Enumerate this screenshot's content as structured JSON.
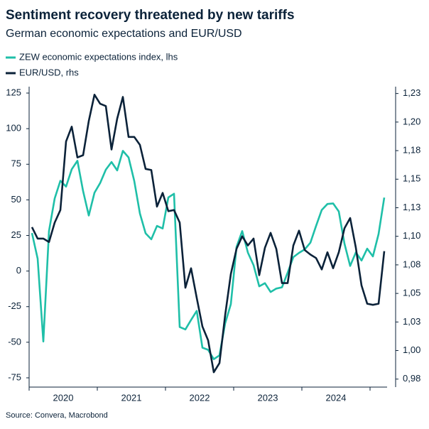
{
  "chart_data": {
    "type": "line",
    "title": "Sentiment recovery threatened by new tariffs",
    "subtitle": "German economic expectations and EUR/USD",
    "source": "Source: Convera, Macrobond",
    "x": [
      2020.042,
      2020.125,
      2020.208,
      2020.292,
      2020.375,
      2020.458,
      2020.542,
      2020.625,
      2020.708,
      2020.792,
      2020.875,
      2020.958,
      2021.042,
      2021.125,
      2021.208,
      2021.292,
      2021.375,
      2021.458,
      2021.542,
      2021.625,
      2021.708,
      2021.792,
      2021.875,
      2021.958,
      2022.042,
      2022.125,
      2022.208,
      2022.292,
      2022.375,
      2022.458,
      2022.542,
      2022.625,
      2022.708,
      2022.792,
      2022.875,
      2022.958,
      2023.042,
      2023.125,
      2023.208,
      2023.292,
      2023.375,
      2023.458,
      2023.542,
      2023.625,
      2023.708,
      2023.792,
      2023.875,
      2023.958,
      2024.042,
      2024.125,
      2024.208,
      2024.292,
      2024.375,
      2024.458,
      2024.542,
      2024.625,
      2024.708,
      2024.792,
      2024.875,
      2024.958,
      2025.042,
      2025.125,
      2025.208
    ],
    "xlim": [
      2020,
      2025.25
    ],
    "xticks": [
      2020,
      2021,
      2022,
      2023,
      2024
    ],
    "ylim": [
      -81.5,
      129.5
    ],
    "yticks": [
      -75,
      -50,
      -25,
      0,
      25,
      50,
      75,
      100,
      125
    ],
    "y2lim": [
      0.968,
      1.231
    ],
    "y2ticks": [
      {
        "value": 0.975,
        "label": "0,98"
      },
      {
        "value": 1.0,
        "label": "1,00"
      },
      {
        "value": 1.025,
        "label": "1,03"
      },
      {
        "value": 1.05,
        "label": "1,05"
      },
      {
        "value": 1.075,
        "label": "1,08"
      },
      {
        "value": 1.1,
        "label": "1,10"
      },
      {
        "value": 1.125,
        "label": "1,13"
      },
      {
        "value": 1.15,
        "label": "1,15"
      },
      {
        "value": 1.175,
        "label": "1,18"
      },
      {
        "value": 1.2,
        "label": "1,20"
      },
      {
        "value": 1.225,
        "label": "1,23"
      }
    ],
    "series": [
      {
        "name": "ZEW economic expectations index, lhs",
        "color": "#1fbfa8",
        "axis": "y",
        "values": [
          26.7,
          8.7,
          -49.5,
          28.2,
          51.0,
          63.4,
          59.3,
          71.5,
          77.4,
          56.1,
          39.0,
          55.0,
          61.8,
          71.2,
          76.6,
          70.7,
          84.4,
          79.8,
          63.3,
          40.4,
          26.5,
          22.3,
          31.7,
          29.9,
          51.7,
          54.3,
          -39.3,
          -41.0,
          -34.3,
          -28.0,
          -53.8,
          -55.3,
          -61.9,
          -59.2,
          -36.7,
          -23.3,
          16.9,
          28.1,
          13.0,
          4.1,
          -10.7,
          -8.5,
          -14.7,
          -12.3,
          -11.4,
          -1.1,
          9.8,
          12.8,
          15.2,
          19.9,
          31.7,
          42.9,
          47.1,
          47.5,
          41.8,
          19.2,
          3.6,
          13.1,
          7.4,
          15.7,
          10.3,
          26.0,
          51.6
        ]
      },
      {
        "name": "EUR/USD, rhs",
        "color": "#0b2239",
        "axis": "y2",
        "values": [
          1.108,
          1.098,
          1.098,
          1.095,
          1.112,
          1.123,
          1.183,
          1.196,
          1.169,
          1.171,
          1.201,
          1.224,
          1.216,
          1.214,
          1.176,
          1.203,
          1.222,
          1.187,
          1.187,
          1.18,
          1.159,
          1.158,
          1.126,
          1.138,
          1.122,
          1.123,
          1.112,
          1.055,
          1.072,
          1.046,
          1.021,
          1.009,
          0.981,
          0.989,
          1.031,
          1.067,
          1.089,
          1.1,
          1.092,
          1.098,
          1.066,
          1.09,
          1.103,
          1.089,
          1.059,
          1.059,
          1.092,
          1.105,
          1.088,
          1.084,
          1.081,
          1.071,
          1.086,
          1.072,
          1.086,
          1.107,
          1.116,
          1.09,
          1.057,
          1.041,
          1.04,
          1.041,
          1.087
        ]
      }
    ]
  }
}
